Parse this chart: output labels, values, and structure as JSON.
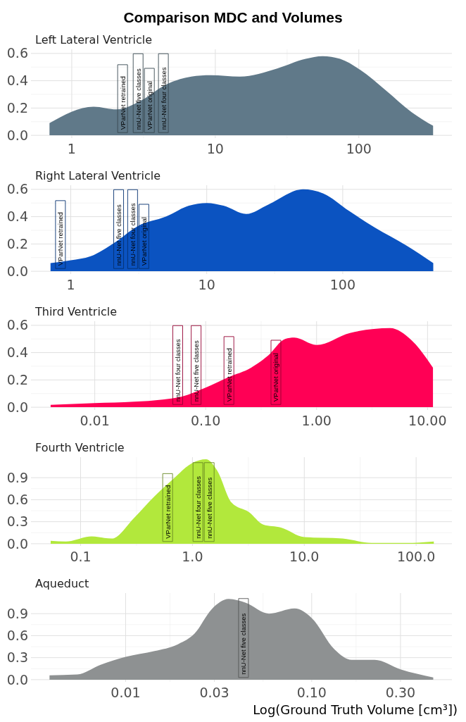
{
  "chart_data": [
    {
      "type": "area",
      "title": "Comparison MDC and Volumes",
      "subtitle": "Left Lateral Ventricle",
      "log": "x",
      "grid": true,
      "x": [
        0.7,
        1.42,
        2.06,
        3.1,
        4.5,
        6.8,
        9.3,
        14.8,
        27,
        42.6,
        56,
        74,
        102,
        154,
        233,
        329
      ],
      "series": [
        {
          "color": "#607989",
          "values": [
            0.09,
            0.21,
            0.19,
            0.26,
            0.37,
            0.43,
            0.44,
            0.43,
            0.49,
            0.56,
            0.58,
            0.56,
            0.48,
            0.33,
            0.17,
            0.07
          ]
        }
      ],
      "xlim": [
        0.52,
        445
      ],
      "xticks": [
        1,
        10,
        100
      ],
      "ylim": [
        -0.02,
        0.63
      ],
      "yticks": [
        {
          "value": 0,
          "label": "0.0"
        },
        {
          "value": 0.2,
          "label": "0.2"
        },
        {
          "value": 0.4,
          "label": "0.4"
        },
        {
          "value": 0.6,
          "label": "0.6"
        }
      ],
      "annotations": [
        {
          "text": "VParNet retrained",
          "x": 2.26,
          "y": 0.02
        },
        {
          "text": "nnU-Net five classes",
          "x": 2.9,
          "y": 0.02
        },
        {
          "text": "VParNet original",
          "x": 3.25,
          "y": 0.02
        },
        {
          "text": "nnU-Net four classes",
          "x": 4.35,
          "y": 0.02
        }
      ]
    },
    {
      "type": "area",
      "subtitle": "Right Lateral Ventricle",
      "log": "x",
      "grid": true,
      "x": [
        0.71,
        1,
        1.4,
        2.1,
        3.1,
        5,
        7.4,
        10,
        13.3,
        19.5,
        28.5,
        51,
        72,
        112,
        172,
        292,
        463
      ],
      "series": [
        {
          "color": "#0b53c1",
          "values": [
            0.06,
            0.08,
            0.11,
            0.21,
            0.33,
            0.4,
            0.48,
            0.5,
            0.48,
            0.42,
            0.49,
            0.6,
            0.57,
            0.44,
            0.32,
            0.19,
            0.06
          ]
        }
      ],
      "xlim": [
        0.51,
        635
      ],
      "xticks": [
        1,
        10,
        100
      ],
      "ylim": [
        -0.02,
        0.63
      ],
      "yticks": [
        {
          "value": 0,
          "label": "0.0"
        },
        {
          "value": 0.2,
          "label": "0.2"
        },
        {
          "value": 0.4,
          "label": "0.4"
        },
        {
          "value": 0.6,
          "label": "0.6"
        }
      ],
      "annotations": [
        {
          "text": "VParNet retrained",
          "x": 0.84,
          "y": 0.02
        },
        {
          "text": "nnU-Net five classes",
          "x": 2.25,
          "y": 0.02
        },
        {
          "text": "nnU-Net four classes",
          "x": 2.85,
          "y": 0.02
        },
        {
          "text": "VParNet original",
          "x": 3.4,
          "y": 0.02
        }
      ]
    },
    {
      "type": "area",
      "subtitle": "Third Ventricle",
      "log": "x",
      "grid": true,
      "x": [
        0.004,
        0.01,
        0.0226,
        0.041,
        0.061,
        0.1,
        0.16,
        0.257,
        0.367,
        0.52,
        0.63,
        1,
        2,
        4.6,
        7.2,
        11.2
      ],
      "series": [
        {
          "color": "#ff0055",
          "values": [
            0.018,
            0.03,
            0.04,
            0.056,
            0.078,
            0.144,
            0.22,
            0.29,
            0.38,
            0.5,
            0.51,
            0.456,
            0.544,
            0.58,
            0.49,
            0.29
          ]
        }
      ],
      "xlim": [
        0.00266,
        16.6
      ],
      "xticks": [
        {
          "value": 0.01,
          "label": "0.01"
        },
        {
          "value": 0.1,
          "label": "0.10"
        },
        {
          "value": 1,
          "label": "1.00"
        },
        {
          "value": 10,
          "label": "10.00"
        }
      ],
      "ylim": [
        -0.02,
        0.63
      ],
      "yticks": [
        {
          "value": 0,
          "label": "0.0"
        },
        {
          "value": 0.2,
          "label": "0.2"
        },
        {
          "value": 0.4,
          "label": "0.4"
        },
        {
          "value": 0.6,
          "label": "0.6"
        }
      ],
      "annotations": [
        {
          "text": "nnU-Net four classes",
          "x": 0.056,
          "y": 0.02
        },
        {
          "text": "nnU-Net five classes",
          "x": 0.082,
          "y": 0.02
        },
        {
          "text": "VParNet retrained",
          "x": 0.162,
          "y": 0.02
        },
        {
          "text": "VParNet original",
          "x": 0.43,
          "y": 0.02
        }
      ]
    },
    {
      "type": "area",
      "subtitle": "Fourth Ventricle",
      "log": "x",
      "grid": true,
      "x": [
        0.054,
        0.074,
        0.125,
        0.19,
        0.3,
        0.46,
        0.66,
        1,
        1.32,
        1.66,
        2.24,
        3.2,
        4.3,
        6.2,
        10,
        22,
        40,
        81,
        144
      ],
      "series": [
        {
          "color": "#b2e83c",
          "values": [
            0.04,
            0.03,
            0.1,
            0.07,
            0.35,
            0.65,
            0.87,
            1.1,
            1.15,
            1,
            0.56,
            0.43,
            0.26,
            0.22,
            0.09,
            0.07,
            0.01,
            0.01,
            0.03
          ]
        }
      ],
      "xlim": [
        0.036,
        209
      ],
      "xticks": [
        {
          "value": 0.1,
          "label": "0.1"
        },
        {
          "value": 1,
          "label": "1.0"
        },
        {
          "value": 10,
          "label": "10.0"
        },
        {
          "value": 100,
          "label": "100.0"
        }
      ],
      "ylim": [
        -0.03,
        1.18
      ],
      "yticks": [
        {
          "value": 0,
          "label": "0.0"
        },
        {
          "value": 0.3,
          "label": "0.3"
        },
        {
          "value": 0.6,
          "label": "0.6"
        },
        {
          "value": 0.9,
          "label": "0.9"
        }
      ],
      "annotations": [
        {
          "text": "VParNet retrained",
          "x": 0.6,
          "y": 0.03
        },
        {
          "text": "nnU-Net four classes",
          "x": 1.12,
          "y": 0.03
        },
        {
          "text": "nnU-Net five classes",
          "x": 1.29,
          "y": 0.03
        }
      ]
    },
    {
      "type": "area",
      "subtitle": "Aqueduct",
      "xlabel": "Log(Ground Truth Volume [cm³])",
      "log": "x",
      "grid": true,
      "x": [
        0.0039,
        0.0055,
        0.0073,
        0.01,
        0.0143,
        0.019,
        0.0235,
        0.029,
        0.0358,
        0.044,
        0.059,
        0.081,
        0.1,
        0.133,
        0.164,
        0.218,
        0.3,
        0.45
      ],
      "series": [
        {
          "color": "#8e9192",
          "values": [
            0.06,
            0.07,
            0.2,
            0.31,
            0.39,
            0.48,
            0.63,
            0.96,
            1.1,
            1.05,
            0.9,
            0.97,
            0.84,
            0.41,
            0.27,
            0.27,
            0.14,
            0.03
          ]
        }
      ],
      "xlim": [
        0.0031,
        0.567
      ],
      "xticks": [
        {
          "value": 0.01,
          "label": "0.01"
        },
        {
          "value": 0.03,
          "label": "0.03"
        },
        {
          "value": 0.1,
          "label": "0.10"
        },
        {
          "value": 0.3,
          "label": "0.30"
        }
      ],
      "ylim": [
        -0.03,
        1.18
      ],
      "yticks": [
        {
          "value": 0,
          "label": "0.0"
        },
        {
          "value": 0.3,
          "label": "0.3"
        },
        {
          "value": 0.6,
          "label": "0.6"
        },
        {
          "value": 0.9,
          "label": "0.9"
        }
      ],
      "annotations": [
        {
          "text": "nnU-Net five classes",
          "x": 0.043,
          "y": 0.03
        }
      ]
    }
  ]
}
